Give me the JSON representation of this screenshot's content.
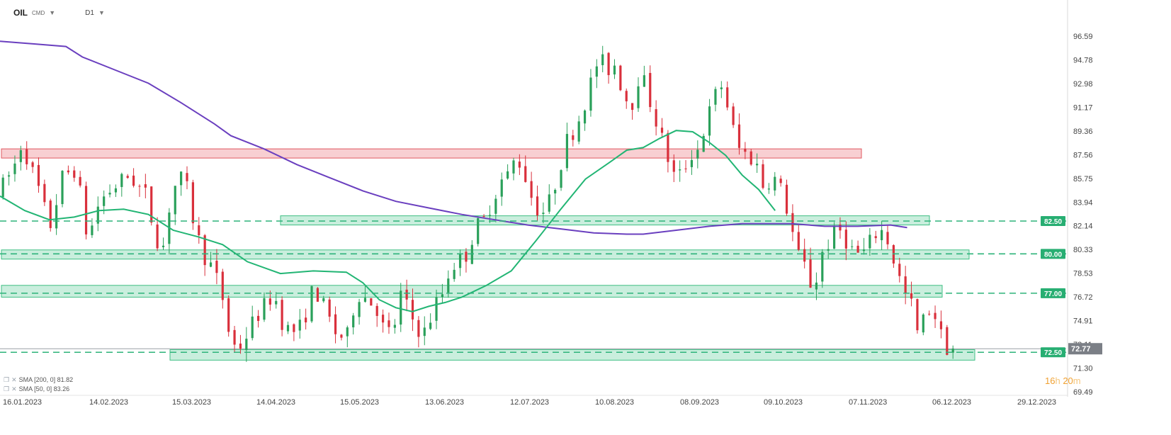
{
  "header": {
    "symbol": "OIL",
    "source": "CMD",
    "timeframe": "D1"
  },
  "chart_data": {
    "type": "candlestick",
    "instrument": "OIL",
    "y_ticks": [
      "96.59",
      "94.78",
      "92.98",
      "91.17",
      "89.36",
      "87.56",
      "85.75",
      "83.94",
      "82.14",
      "80.33",
      "78.53",
      "76.72",
      "74.91",
      "73.11",
      "71.30",
      "69.49"
    ],
    "ylim": [
      69.49,
      96.59
    ],
    "x_ticks": [
      "16.01.2023",
      "14.02.2023",
      "15.03.2023",
      "14.04.2023",
      "15.05.2023",
      "13.06.2023",
      "12.07.2023",
      "10.08.2023",
      "08.09.2023",
      "09.10.2023",
      "07.11.2023",
      "06.12.2023",
      "29.12.2023"
    ],
    "last_price": "72.77",
    "last_price_value": 72.77,
    "zones": [
      {
        "low": 87.3,
        "high": 88.0,
        "color": "red"
      },
      {
        "low": 82.2,
        "high": 82.9,
        "color": "green"
      },
      {
        "low": 79.6,
        "high": 80.3,
        "color": "green"
      },
      {
        "low": 76.7,
        "high": 77.6,
        "color": "green"
      },
      {
        "low": 71.9,
        "high": 72.7,
        "color": "green"
      }
    ],
    "levels": [
      {
        "value": 82.5,
        "label": "82.50"
      },
      {
        "value": 80.0,
        "label": "80.00"
      },
      {
        "value": 77.0,
        "label": "77.00"
      },
      {
        "value": 72.5,
        "label": "72.50"
      }
    ],
    "sma200_points": [
      [
        0,
        96.2
      ],
      [
        20,
        96
      ],
      [
        40,
        95.8
      ],
      [
        50,
        95
      ],
      [
        70,
        94
      ],
      [
        90,
        93
      ],
      [
        110,
        91.5
      ],
      [
        130,
        89.9
      ],
      [
        140,
        89
      ],
      [
        160,
        88
      ],
      [
        180,
        86.8
      ],
      [
        200,
        85.8
      ],
      [
        220,
        84.8
      ],
      [
        240,
        84
      ],
      [
        260,
        83.5
      ],
      [
        280,
        83
      ],
      [
        300,
        82.6
      ],
      [
        320,
        82.2
      ],
      [
        340,
        81.9
      ],
      [
        360,
        81.6
      ],
      [
        380,
        81.5
      ],
      [
        390,
        81.5
      ],
      [
        410,
        81.8
      ],
      [
        430,
        82.1
      ],
      [
        450,
        82.3
      ],
      [
        470,
        82.3
      ],
      [
        480,
        82.3
      ],
      [
        500,
        82.1
      ],
      [
        520,
        82.1
      ],
      [
        540,
        82.2
      ],
      [
        550,
        82.0
      ]
    ],
    "sma50_points": [
      [
        0,
        84.4
      ],
      [
        15,
        83.3
      ],
      [
        30,
        82.6
      ],
      [
        45,
        82.8
      ],
      [
        60,
        83.3
      ],
      [
        75,
        83.4
      ],
      [
        90,
        83.0
      ],
      [
        105,
        81.8
      ],
      [
        120,
        81.3
      ],
      [
        135,
        80.7
      ],
      [
        150,
        79.4
      ],
      [
        170,
        78.5
      ],
      [
        190,
        78.7
      ],
      [
        210,
        78.6
      ],
      [
        220,
        77.8
      ],
      [
        230,
        76.5
      ],
      [
        240,
        75.9
      ],
      [
        250,
        75.6
      ],
      [
        260,
        76.0
      ],
      [
        270,
        76.3
      ],
      [
        280,
        76.7
      ],
      [
        295,
        77.6
      ],
      [
        310,
        78.7
      ],
      [
        325,
        81.0
      ],
      [
        340,
        83.4
      ],
      [
        355,
        85.7
      ],
      [
        370,
        87.0
      ],
      [
        380,
        87.9
      ],
      [
        390,
        88.1
      ],
      [
        400,
        88.8
      ],
      [
        410,
        89.4
      ],
      [
        420,
        89.3
      ],
      [
        430,
        88.5
      ],
      [
        440,
        87.5
      ],
      [
        450,
        86.0
      ],
      [
        460,
        84.9
      ],
      [
        470,
        83.3
      ]
    ],
    "candle_keypoints": [
      [
        0,
        84.5
      ],
      [
        10,
        86.5
      ],
      [
        15,
        88.5
      ],
      [
        25,
        85
      ],
      [
        32,
        82
      ],
      [
        40,
        86
      ],
      [
        48,
        86.5
      ],
      [
        55,
        81
      ],
      [
        62,
        84
      ],
      [
        70,
        85
      ],
      [
        80,
        86
      ],
      [
        90,
        84.5
      ],
      [
        95,
        82
      ],
      [
        100,
        80
      ],
      [
        105,
        84
      ],
      [
        110,
        86
      ],
      [
        115,
        85
      ],
      [
        120,
        82
      ],
      [
        125,
        80
      ],
      [
        130,
        79
      ],
      [
        135,
        77.5
      ],
      [
        138,
        76
      ],
      [
        142,
        73
      ],
      [
        148,
        73
      ],
      [
        156,
        75
      ],
      [
        162,
        76
      ],
      [
        168,
        77
      ],
      [
        172,
        75
      ],
      [
        178,
        74
      ],
      [
        185,
        74.5
      ],
      [
        192,
        77.5
      ],
      [
        198,
        76
      ],
      [
        205,
        74
      ],
      [
        212,
        73.5
      ],
      [
        218,
        77
      ],
      [
        222,
        76.8
      ],
      [
        230,
        76
      ],
      [
        235,
        74
      ],
      [
        240,
        74
      ],
      [
        245,
        77
      ],
      [
        250,
        75.5
      ],
      [
        255,
        74.3
      ],
      [
        260,
        74
      ],
      [
        265,
        76
      ],
      [
        270,
        77
      ],
      [
        275,
        79
      ],
      [
        280,
        79.5
      ],
      [
        285,
        80
      ],
      [
        290,
        82
      ],
      [
        295,
        82.5
      ],
      [
        300,
        84
      ],
      [
        305,
        85.5
      ],
      [
        310,
        86
      ],
      [
        315,
        87.5
      ],
      [
        320,
        86
      ],
      [
        325,
        84
      ],
      [
        330,
        83
      ],
      [
        335,
        84
      ],
      [
        340,
        86
      ],
      [
        345,
        88.5
      ],
      [
        350,
        89.5
      ],
      [
        355,
        91
      ],
      [
        360,
        93
      ],
      [
        365,
        95
      ],
      [
        370,
        94
      ],
      [
        375,
        94.5
      ],
      [
        380,
        92
      ],
      [
        385,
        91.5
      ],
      [
        390,
        94
      ],
      [
        395,
        92
      ],
      [
        400,
        90
      ],
      [
        405,
        88
      ],
      [
        410,
        86
      ],
      [
        415,
        86
      ],
      [
        420,
        87.5
      ],
      [
        425,
        88
      ],
      [
        430,
        90
      ],
      [
        435,
        92
      ],
      [
        440,
        93
      ],
      [
        445,
        90
      ],
      [
        450,
        88
      ],
      [
        455,
        87.5
      ],
      [
        460,
        87
      ],
      [
        465,
        85
      ],
      [
        470,
        86
      ],
      [
        475,
        85
      ],
      [
        480,
        83
      ],
      [
        485,
        80
      ],
      [
        490,
        79
      ],
      [
        495,
        77
      ],
      [
        500,
        80
      ],
      [
        505,
        81
      ],
      [
        510,
        82
      ],
      [
        515,
        81
      ],
      [
        520,
        80
      ],
      [
        525,
        80
      ],
      [
        530,
        81
      ],
      [
        535,
        82
      ],
      [
        540,
        81
      ],
      [
        545,
        79
      ],
      [
        550,
        77
      ],
      [
        555,
        76
      ],
      [
        558,
        74
      ],
      [
        562,
        75
      ],
      [
        566,
        76
      ],
      [
        570,
        75
      ],
      [
        574,
        73
      ],
      [
        578,
        72.8
      ]
    ]
  },
  "legend": [
    {
      "label": "SMA [200, 0] 81.82"
    },
    {
      "label": "SMA [50, 0] 83.26"
    }
  ],
  "countdown": {
    "hours": "16",
    "h": "h",
    "minutes": "20",
    "m": "m"
  },
  "colors": {
    "up": "#2aa05a",
    "down": "#d9303c",
    "sma200": "#6a3fbf",
    "sma50": "#22b574",
    "zone_green_fill": "#c9eedd",
    "zone_green_stroke": "#3fbf84",
    "zone_red_fill": "#f8cfd2",
    "zone_red_stroke": "#e05860",
    "level_line": "#2db37a",
    "level_tag": "#27ae72",
    "price_tag": "#7b7f86",
    "axis_text": "#444444"
  }
}
